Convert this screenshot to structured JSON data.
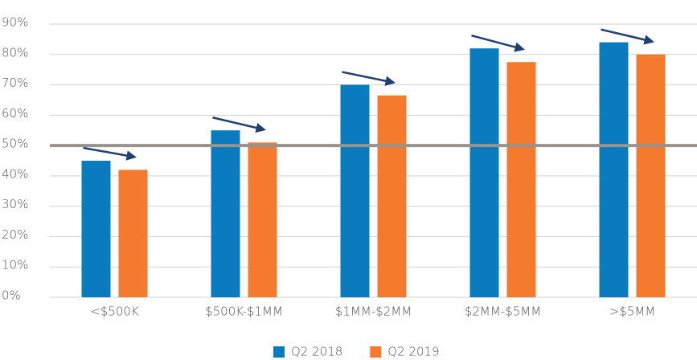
{
  "chart_data": {
    "type": "bar",
    "categories": [
      "<$500K",
      "$500K-$1MM",
      "$1MM-$2MM",
      "$2MM-$5MM",
      ">$5MM"
    ],
    "series": [
      {
        "name": "Q2 2018",
        "color": "#0a7bbf",
        "values": [
          45,
          55,
          70,
          82,
          84
        ]
      },
      {
        "name": "Q2 2019",
        "color": "#f47a2d",
        "values": [
          42,
          51,
          66.5,
          77.5,
          80
        ]
      }
    ],
    "ylim": [
      0,
      90
    ],
    "yticks": [
      {
        "value": 0,
        "label": "0%"
      },
      {
        "value": 10,
        "label": "10%"
      },
      {
        "value": 20,
        "label": "20%"
      },
      {
        "value": 30,
        "label": "30%"
      },
      {
        "value": 40,
        "label": "40%"
      },
      {
        "value": 50,
        "label": "50%"
      },
      {
        "value": 60,
        "label": "60%"
      },
      {
        "value": 70,
        "label": "70%"
      },
      {
        "value": 80,
        "label": "80%"
      },
      {
        "value": 90,
        "label": "90%"
      }
    ],
    "reference_line": {
      "value": 50,
      "color": "#9a928c"
    },
    "grid": true,
    "legend": "bottom"
  }
}
